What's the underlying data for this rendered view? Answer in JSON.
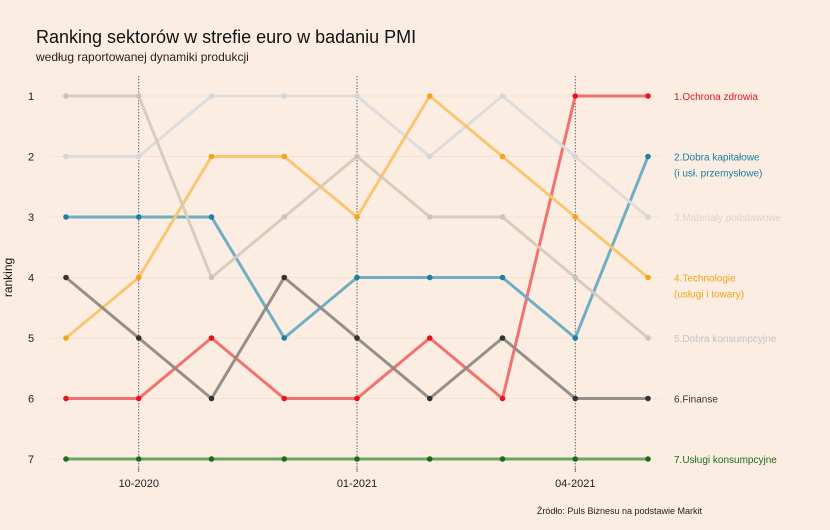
{
  "title": "Ranking sektorów w strefie euro w badaniu PMI",
  "subtitle": "według raportowanej dynamiki produkcji",
  "caption": "Źródło: Puls Biznesu na podstawie Markit",
  "chart_data": {
    "type": "line",
    "title": "Ranking sektorów w strefie euro w badaniu PMI",
    "subtitle": "według raportowanej dynamiki produkcji",
    "ylabel": "ranking",
    "xlabel": "",
    "y_reversed": true,
    "ylim": [
      1,
      7
    ],
    "y_ticks": [
      "1",
      "2",
      "3",
      "4",
      "5",
      "6",
      "7"
    ],
    "x": [
      "2020-09",
      "2020-10",
      "2020-11",
      "2020-12",
      "2021-01",
      "2021-02",
      "2021-03",
      "2021-04",
      "2021-05"
    ],
    "x_tick_labels": [
      {
        "x": "2020-10",
        "label": "10-2020"
      },
      {
        "x": "2021-01",
        "label": "01-2021"
      },
      {
        "x": "2021-04",
        "label": "04-2021"
      }
    ],
    "vlines": [
      "2020-10",
      "2021-01",
      "2021-04"
    ],
    "grid": "horizontal",
    "legend": "direct labels at right end",
    "series": [
      {
        "label_lines": [
          "1.Ochrona zdrowia"
        ],
        "color": "#f26a68",
        "label_color": "#e8141b",
        "values": [
          6,
          6,
          5,
          6,
          6,
          5,
          6,
          1,
          1
        ]
      },
      {
        "label_lines": [
          "2.Dobra kapitałowe",
          "(i usł. przemysłowe)"
        ],
        "color": "#6aabc1",
        "label_color": "#1b7fa6",
        "values": [
          3,
          3,
          3,
          5,
          4,
          4,
          4,
          5,
          2
        ]
      },
      {
        "label_lines": [
          "3.Materiały podstawowe"
        ],
        "color": "#dcdcdc",
        "label_color": "#d5d5d5",
        "values": [
          2,
          2,
          1,
          1,
          1,
          2,
          1,
          2,
          3
        ]
      },
      {
        "label_lines": [
          "4.Technologie",
          "(usługi i towary)"
        ],
        "color": "#fac46b",
        "label_color": "#f5a31a",
        "values": [
          5,
          4,
          2,
          2,
          3,
          1,
          2,
          3,
          4
        ]
      },
      {
        "label_lines": [
          "5.Dobra konsumpcyjne"
        ],
        "color": "#d4cbbb",
        "label_color": "#c4c4c4",
        "values": [
          1,
          1,
          4,
          3,
          2,
          3,
          3,
          4,
          5
        ]
      },
      {
        "label_lines": [
          "6.Finanse"
        ],
        "color": "#8f8a84",
        "label_color": "#333333",
        "values": [
          4,
          5,
          6,
          4,
          5,
          6,
          5,
          6,
          6
        ]
      },
      {
        "label_lines": [
          "7.Usługi konsumpcyjne"
        ],
        "color": "#5fa05f",
        "label_color": "#1a6e1a",
        "values": [
          7,
          7,
          7,
          7,
          7,
          7,
          7,
          7,
          7
        ]
      }
    ]
  }
}
